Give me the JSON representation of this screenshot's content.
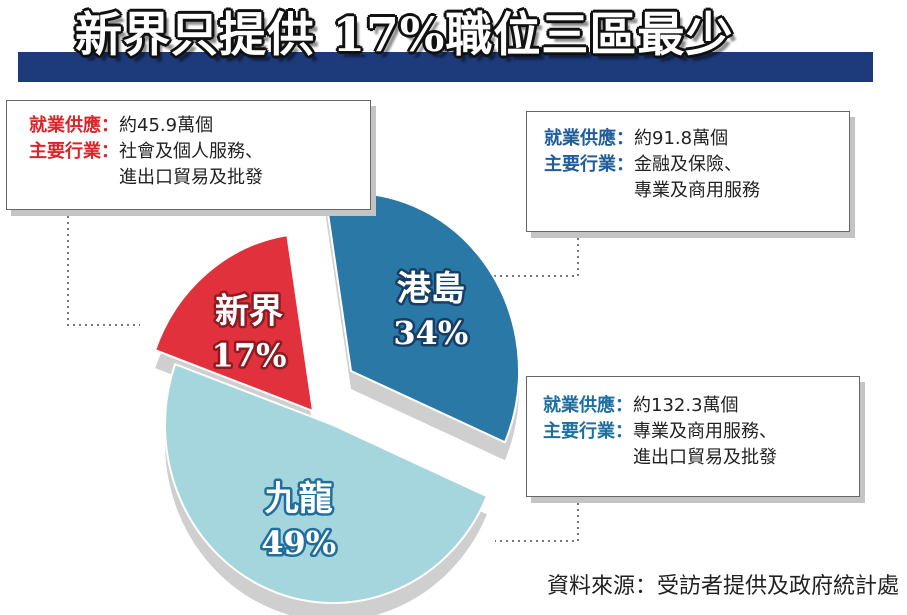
{
  "title": "新界只提供 17%職位三區最少",
  "colors": {
    "banner": "#1d3a7a",
    "new_territories": "#e1313c",
    "hong_kong_island": "#2a78a6",
    "kowloon": "#a6d6dd",
    "side": "#cfcfcf",
    "red_text": "#d9262b",
    "blue_text": "#1f5d9b"
  },
  "boxes": {
    "new_territories": {
      "supply_key": "就業供應",
      "supply_value": "約45.9萬個",
      "industry_key": "主要行業",
      "industry_value": "社會及個人服務、\n進出口貿易及批發"
    },
    "hong_kong_island": {
      "supply_key": "就業供應",
      "supply_value": "約91.8萬個",
      "industry_key": "主要行業",
      "industry_value": "金融及保險、\n專業及商用服務"
    },
    "kowloon": {
      "supply_key": "就業供應",
      "supply_value": "約132.3萬個",
      "industry_key": "主要行業",
      "industry_value": "專業及商用服務、\n進出口貿易及批發"
    }
  },
  "colon": "：",
  "chart_data": {
    "type": "pie",
    "title": "新界只提供 17%職位三區最少",
    "categories": [
      "新界",
      "港島",
      "九龍"
    ],
    "values": [
      17,
      34,
      49
    ],
    "value_labels": [
      "17%",
      "34%",
      "49%"
    ],
    "legend": "none"
  },
  "source": "資料來源：受訪者提供及政府統計處"
}
